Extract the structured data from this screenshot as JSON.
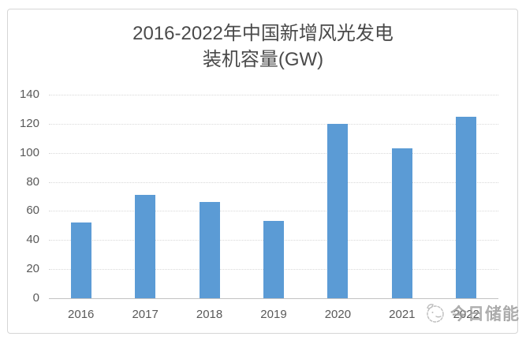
{
  "chart_data": {
    "type": "bar",
    "title": "2016-2022年中国新增风光发电装机容量(GW)",
    "title_lines": [
      "2016-2022年中国新增风光发电",
      "装机容量(GW)"
    ],
    "categories": [
      "2016",
      "2017",
      "2018",
      "2019",
      "2020",
      "2021",
      "2022"
    ],
    "values": [
      52,
      71,
      66,
      53,
      120,
      103,
      125
    ],
    "xlabel": "",
    "ylabel": "",
    "unit": "GW",
    "ylim": [
      0,
      140
    ],
    "yticks": [
      0,
      20,
      40,
      60,
      80,
      100,
      120,
      140
    ],
    "grid": true,
    "gridline_style": "dotted",
    "legend": "none",
    "bar_color": "#5b9bd5"
  },
  "colors": {
    "bar": "#5b9bd5",
    "gridline": "#d9d9d9",
    "axis_line": "#c3c3c3",
    "tick_label": "#595959",
    "title": "#4a4a4a",
    "border": "#d6d6d6",
    "watermark": "#9a9a9a"
  },
  "watermark": {
    "text": "今日储能"
  }
}
